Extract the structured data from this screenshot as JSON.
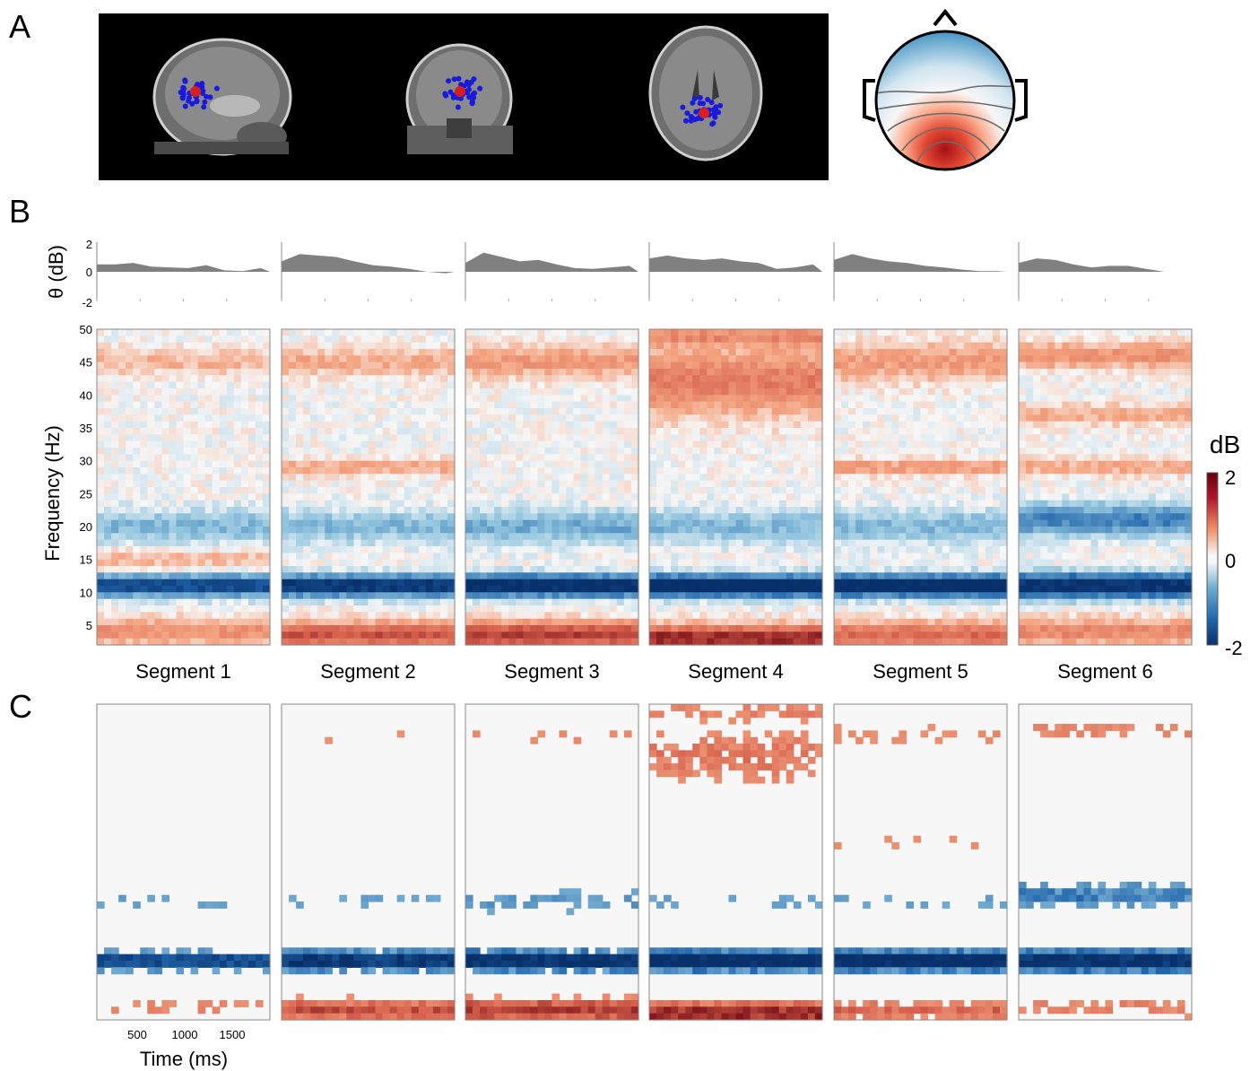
{
  "panels": {
    "a": "A",
    "b": "B",
    "c": "C"
  },
  "colors": {
    "neg": "#08306b",
    "mid": "#f7f7f7",
    "pos": "#67000d",
    "theta_fill": "#808080",
    "mri_bg": "#000000",
    "dipole_blue": "#1a1adc",
    "dipole_red": "#d61f1f"
  },
  "theta_row": {
    "ylabel": "θ (dB)",
    "yticks": [
      "2",
      "0",
      "-2"
    ]
  },
  "tf_row": {
    "ylabel": "Frequency (Hz)",
    "yticks": [
      "50",
      "45",
      "40",
      "35",
      "30",
      "25",
      "20",
      "15",
      "10",
      "5"
    ]
  },
  "colorbar": {
    "title": "dB",
    "ticks": [
      "2",
      "0",
      "-2"
    ]
  },
  "segments": [
    "Segment 1",
    "Segment 2",
    "Segment 3",
    "Segment 4",
    "Segment 5",
    "Segment 6"
  ],
  "c_row": {
    "xticks": [
      "500",
      "1000",
      "1500"
    ],
    "xlabel": "Time (ms)"
  },
  "chart_data": [
    {
      "type": "area",
      "ylim": [
        -2,
        2
      ],
      "xlim_ms": [
        0,
        1900
      ],
      "x": [
        0,
        200,
        400,
        600,
        800,
        1000,
        1200,
        1400,
        1600,
        1800
      ],
      "series": [
        {
          "values": [
            0.5,
            0.5,
            0.6,
            0.35,
            0.3,
            0.25,
            0.45,
            0.1,
            0.05,
            0.25
          ]
        },
        {
          "values": [
            0.7,
            1.2,
            1.1,
            1.0,
            0.7,
            0.45,
            0.35,
            0.2,
            0.0,
            -0.1
          ]
        },
        {
          "values": [
            0.6,
            1.3,
            1.0,
            0.7,
            0.8,
            0.5,
            0.25,
            0.2,
            0.3,
            0.4
          ]
        },
        {
          "values": [
            0.9,
            1.1,
            0.9,
            0.8,
            0.9,
            0.7,
            0.6,
            0.2,
            0.3,
            0.5
          ]
        },
        {
          "values": [
            0.8,
            1.2,
            0.9,
            0.7,
            0.6,
            0.4,
            0.3,
            0.15,
            0.05,
            0.05
          ]
        },
        {
          "values": [
            0.6,
            0.9,
            0.8,
            0.5,
            0.3,
            0.4,
            0.4,
            0.2,
            0.0,
            0.0
          ]
        }
      ]
    },
    {
      "type": "heatmap",
      "zlim": [
        -2,
        2
      ],
      "ylim": [
        2,
        50
      ],
      "xlim_ms": [
        0,
        1900
      ],
      "segments": [
        {
          "features": [
            {
              "f": 11,
              "bw": 1.6,
              "amp": -1.7
            },
            {
              "f": 4,
              "bw": 2.0,
              "amp": 0.7
            },
            {
              "f": 20,
              "bw": 2.5,
              "amp": -0.6
            },
            {
              "f": 45,
              "bw": 2.0,
              "amp": 0.4
            },
            {
              "f": 15,
              "bw": 1.5,
              "amp": 0.4
            }
          ]
        },
        {
          "features": [
            {
              "f": 11,
              "bw": 1.6,
              "amp": -2.0
            },
            {
              "f": 3.5,
              "bw": 2.0,
              "amp": 1.3
            },
            {
              "f": 20,
              "bw": 2.5,
              "amp": -0.6
            },
            {
              "f": 45,
              "bw": 2.0,
              "amp": 0.5
            },
            {
              "f": 29,
              "bw": 1.2,
              "amp": 0.5
            }
          ]
        },
        {
          "features": [
            {
              "f": 11,
              "bw": 1.6,
              "amp": -2.2
            },
            {
              "f": 3.5,
              "bw": 2.0,
              "amp": 1.5
            },
            {
              "f": 20,
              "bw": 2.5,
              "amp": -0.7
            },
            {
              "f": 45,
              "bw": 2.5,
              "amp": 0.6
            }
          ]
        },
        {
          "features": [
            {
              "f": 11,
              "bw": 1.6,
              "amp": -2.3
            },
            {
              "f": 3,
              "bw": 2.0,
              "amp": 1.7
            },
            {
              "f": 20,
              "bw": 2.5,
              "amp": -0.6
            },
            {
              "f": 42,
              "bw": 5.0,
              "amp": 0.9
            },
            {
              "f": 49,
              "bw": 1.5,
              "amp": 0.7
            }
          ]
        },
        {
          "features": [
            {
              "f": 11,
              "bw": 1.6,
              "amp": -2.3
            },
            {
              "f": 3.5,
              "bw": 2.0,
              "amp": 1.1
            },
            {
              "f": 20,
              "bw": 2.5,
              "amp": -0.6
            },
            {
              "f": 45,
              "bw": 3.0,
              "amp": 0.6
            },
            {
              "f": 29,
              "bw": 1.2,
              "amp": 0.6
            }
          ]
        },
        {
          "features": [
            {
              "f": 11,
              "bw": 1.8,
              "amp": -2.1
            },
            {
              "f": 4,
              "bw": 2.0,
              "amp": 0.8
            },
            {
              "f": 21,
              "bw": 2.5,
              "amp": -1.0
            },
            {
              "f": 46,
              "bw": 2.0,
              "amp": 0.7
            },
            {
              "f": 37,
              "bw": 1.5,
              "amp": 0.5
            },
            {
              "f": 29,
              "bw": 1.2,
              "amp": 0.5
            }
          ]
        }
      ]
    }
  ]
}
